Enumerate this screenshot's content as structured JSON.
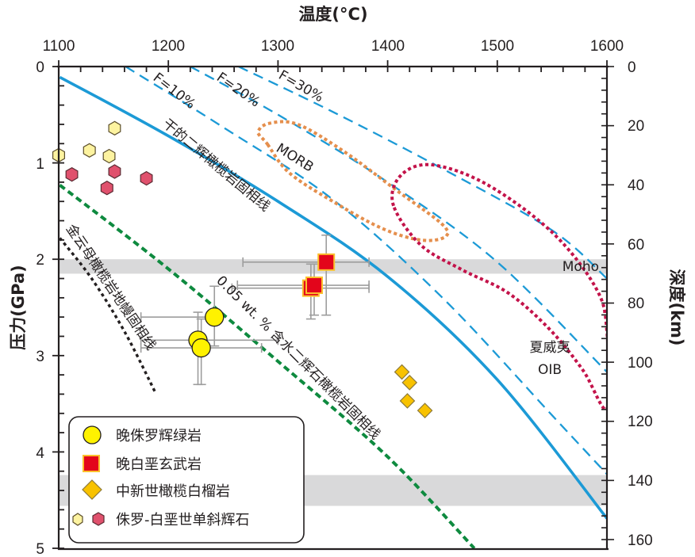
{
  "chart_data": {
    "type": "scatter",
    "title": "",
    "xlabel": "温度(°C)",
    "ylabel": "压力(GPa)",
    "y2label": "深度(km)",
    "xlim": [
      1100,
      1600
    ],
    "ylim": [
      0,
      5
    ],
    "y2lim": [
      0,
      160
    ],
    "x_ticks": [
      "1100",
      "1200",
      "1300",
      "1400",
      "1500",
      "1600"
    ],
    "y_ticks": [
      "0",
      "1",
      "2",
      "3",
      "4",
      "5"
    ],
    "y2_ticks": [
      "0",
      "20",
      "40",
      "60",
      "80",
      "100",
      "120",
      "140",
      "160"
    ],
    "x_axis_position": "top",
    "grid": false,
    "legend_position": "bottom-left",
    "bands": [
      {
        "name": "Moho",
        "label": "Moho",
        "p_range": [
          2.0,
          2.15
        ],
        "color": "#d9d9da"
      },
      {
        "name": "deep-band",
        "label": "",
        "p_range": [
          4.24,
          4.56
        ],
        "color": "#d9d9da"
      }
    ],
    "curves": [
      {
        "name": "dry-peridotite-solidus",
        "label": "干的二辉橄榄岩固相线",
        "style": "solid",
        "color": "#1c9ad6",
        "points": [
          [
            1101,
            0.11
          ],
          [
            1200,
            0.72
          ],
          [
            1300,
            1.4
          ],
          [
            1400,
            2.18
          ],
          [
            1500,
            3.25
          ],
          [
            1600,
            4.69
          ]
        ]
      },
      {
        "name": "melt-fraction-10",
        "label": "F=10%",
        "style": "dashed",
        "color": "#1c9ad6",
        "points": [
          [
            1161,
            0
          ],
          [
            1250,
            0.63
          ],
          [
            1350,
            1.38
          ],
          [
            1450,
            2.4
          ],
          [
            1550,
            3.62
          ],
          [
            1600,
            4.23
          ]
        ]
      },
      {
        "name": "melt-fraction-20",
        "label": "F=20%",
        "style": "dashed",
        "color": "#1c9ad6",
        "points": [
          [
            1220,
            0
          ],
          [
            1300,
            0.5
          ],
          [
            1400,
            1.2
          ],
          [
            1500,
            2.03
          ],
          [
            1600,
            3.17
          ]
        ]
      },
      {
        "name": "melt-fraction-30",
        "label": "F=30%",
        "style": "dashed",
        "color": "#1c9ad6",
        "points": [
          [
            1264,
            0
          ],
          [
            1350,
            0.47
          ],
          [
            1450,
            1.06
          ],
          [
            1550,
            1.7
          ],
          [
            1600,
            2.2
          ]
        ]
      },
      {
        "name": "hydrous-garnet-peridotite-solidus",
        "label": "0.05 wt.% 含水二辉石橄榄岩固相线",
        "style": "dashed",
        "color": "#0e8a3f",
        "points": [
          [
            1101,
            1.23
          ],
          [
            1200,
            2.1
          ],
          [
            1300,
            3.06
          ],
          [
            1400,
            4.05
          ],
          [
            1479,
            5.0
          ]
        ]
      },
      {
        "name": "phlogopite-peridotite-solidus",
        "label": "金云母橄榄岩地幔固相线",
        "style": "dotted",
        "color": "#231f20",
        "points": [
          [
            1101,
            1.78
          ],
          [
            1130,
            2.2
          ],
          [
            1160,
            2.75
          ],
          [
            1188,
            3.38
          ]
        ]
      }
    ],
    "fields": [
      {
        "name": "MORB",
        "label": "MORB",
        "color": "#e58f4d",
        "points": [
          [
            1290,
            0.8
          ],
          [
            1282,
            0.68
          ],
          [
            1292,
            0.59
          ],
          [
            1318,
            0.6
          ],
          [
            1360,
            0.88
          ],
          [
            1410,
            1.3
          ],
          [
            1450,
            1.64
          ],
          [
            1452,
            1.77
          ],
          [
            1430,
            1.8
          ],
          [
            1395,
            1.68
          ],
          [
            1350,
            1.4
          ],
          [
            1310,
            1.1
          ]
        ]
      },
      {
        "name": "Hawaii-OIB",
        "label_line1": "夏威夷",
        "label_line2": "OIB",
        "color": "#c3134a",
        "points": [
          [
            1405,
            1.43
          ],
          [
            1412,
            1.13
          ],
          [
            1440,
            1.02
          ],
          [
            1490,
            1.22
          ],
          [
            1550,
            1.72
          ],
          [
            1590,
            2.3
          ],
          [
            1600,
            2.75
          ],
          [
            1600,
            3.55
          ],
          [
            1578,
            3.15
          ],
          [
            1548,
            2.73
          ],
          [
            1510,
            2.35
          ],
          [
            1468,
            2.11
          ],
          [
            1430,
            1.85
          ]
        ]
      }
    ],
    "series": [
      {
        "name": "晚侏罗辉绿岩",
        "marker": "circle",
        "fill": "#fff200",
        "stroke": "#231f20",
        "points": [
          {
            "x": 1242,
            "y": 2.6,
            "xerr": [
              1175,
              1242
            ],
            "yerr": [
              2.28,
              2.9
            ]
          },
          {
            "x": 1227,
            "y": 2.84,
            "xerr": [
              1175,
              1300
            ],
            "yerr": [
              2.55,
              3.3
            ]
          },
          {
            "x": 1230,
            "y": 2.92,
            "xerr": [
              1175,
              1285
            ],
            "yerr": [
              2.62,
              3.3
            ]
          }
        ]
      },
      {
        "name": "晚白垩玄武岩",
        "marker": "square",
        "fill": "#e3051b",
        "stroke": "#fbc02d",
        "points": [
          {
            "x": 1344,
            "y": 2.03,
            "xerr": [
              1268,
              1383
            ],
            "yerr": [
              1.75,
              2.58
            ]
          },
          {
            "x": 1330,
            "y": 2.3,
            "xerr": [
              1258,
              1383
            ],
            "yerr": [
              2.05,
              2.62
            ]
          },
          {
            "x": 1333,
            "y": 2.27,
            "xerr": [
              1263,
              1383
            ],
            "yerr": [
              2.05,
              2.58
            ]
          }
        ]
      },
      {
        "name": "中新世橄榄白榴岩",
        "marker": "diamond",
        "fill": "#f8c200",
        "stroke": "#8d7a3a",
        "points": [
          {
            "x": 1413,
            "y": 3.17
          },
          {
            "x": 1420,
            "y": 3.28
          },
          {
            "x": 1418,
            "y": 3.47
          },
          {
            "x": 1434,
            "y": 3.57
          }
        ]
      },
      {
        "name": "侏罗-白垩世单斜辉石 (黄)",
        "marker": "hexagon",
        "fill": "#fdf3a0",
        "stroke": "#5b4e2b",
        "points": [
          {
            "x": 1100,
            "y": 0.92
          },
          {
            "x": 1128,
            "y": 0.87
          },
          {
            "x": 1151,
            "y": 0.64
          },
          {
            "x": 1146,
            "y": 0.93
          }
        ]
      },
      {
        "name": "侏罗-白垩世单斜辉石 (红)",
        "marker": "hexagon",
        "fill": "#e0516d",
        "stroke": "#5b2b33",
        "points": [
          {
            "x": 1112,
            "y": 1.12
          },
          {
            "x": 1151,
            "y": 1.09
          },
          {
            "x": 1144,
            "y": 1.26
          },
          {
            "x": 1180,
            "y": 1.16
          }
        ]
      }
    ],
    "annotations": {
      "f10": "F=10%",
      "f20": "F=20%",
      "f30": "F=30%",
      "morb": "MORB",
      "dry_solidus": "干的二辉橄榄岩固相线",
      "hydrous_solidus": "0.05 wt. % 含水二辉石橄榄岩固相线",
      "phlogopite_solidus": "金云母橄榄岩地幔固相线",
      "moho": "Moho",
      "oib_line1": "夏威夷",
      "oib_line2": "OIB"
    },
    "legend": [
      {
        "label": "晚侏罗辉绿岩",
        "marker": "circle"
      },
      {
        "label": "晚白垩玄武岩",
        "marker": "square"
      },
      {
        "label": "中新世橄榄白榴岩",
        "marker": "diamond"
      },
      {
        "label": "侏罗-白垩世单斜辉石",
        "marker": "hexagon-pair"
      }
    ]
  }
}
